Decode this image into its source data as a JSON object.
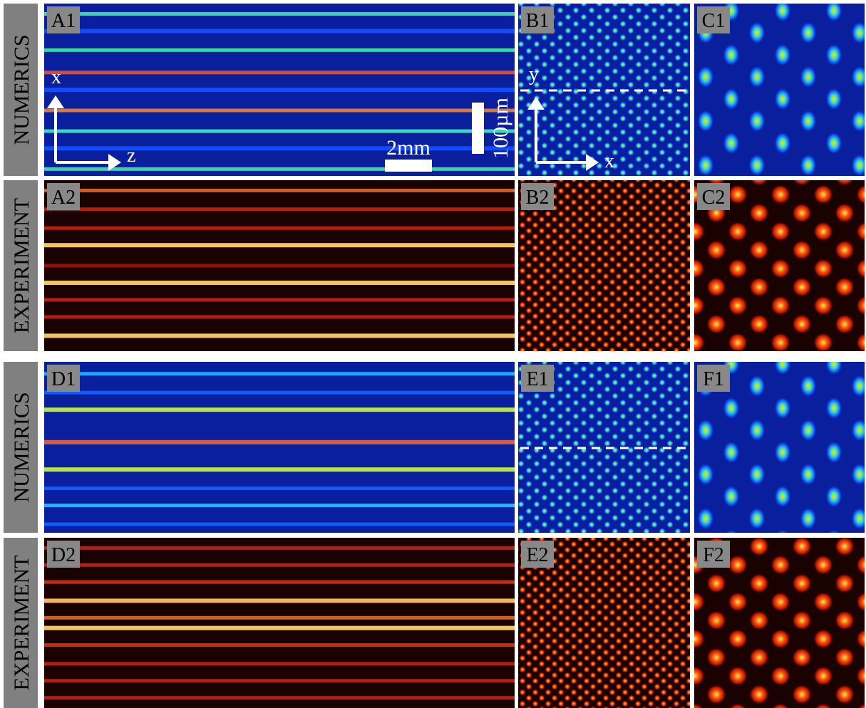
{
  "rows": [
    {
      "label": "NUMERICS",
      "panels": [
        "A1",
        "B1",
        "C1"
      ]
    },
    {
      "label": "EXPERIMENT",
      "panels": [
        "A2",
        "B2",
        "C2"
      ]
    },
    {
      "label": "NUMERICS",
      "panels": [
        "D1",
        "E1",
        "F1"
      ]
    },
    {
      "label": "EXPERIMENT",
      "panels": [
        "D2",
        "E2",
        "F2"
      ]
    }
  ],
  "annotations": {
    "axis_x": "x",
    "axis_z": "z",
    "scale_length": "2mm",
    "scale_width": "100µm",
    "axis_y": "y",
    "axis_x2": "x"
  }
}
